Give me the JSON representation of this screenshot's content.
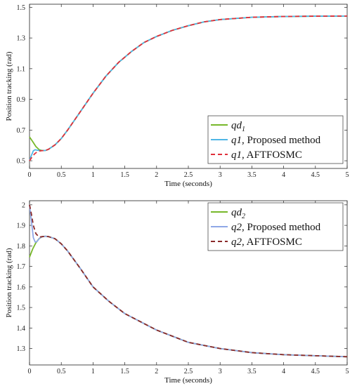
{
  "chart_data": [
    {
      "type": "line",
      "xlabel": "Time (seconds)",
      "ylabel": "Position tracking (rad)",
      "xlim": [
        0,
        5
      ],
      "ylim": [
        0.45,
        1.52
      ],
      "xticks": [
        "0",
        "0.5",
        "1",
        "1.5",
        "2",
        "2.5",
        "3",
        "3.5",
        "4",
        "4.5",
        "5"
      ],
      "yticks": [
        "0.5",
        "0.7",
        "0.9",
        "1.1",
        "1.3",
        "1.5"
      ],
      "ytick_values": [
        0.5,
        0.7,
        0.9,
        1.1,
        1.3,
        1.5
      ],
      "legend_position": "bottom-right",
      "series": [
        {
          "name": "qd",
          "subscript": "1",
          "suffix": "",
          "color": "#77b82a",
          "dash": "solid",
          "x": [
            0,
            0.05,
            0.1,
            0.15,
            0.2,
            0.25,
            0.3,
            0.4,
            0.5,
            0.6,
            0.7,
            0.8,
            0.9,
            1.0,
            1.2,
            1.4,
            1.6,
            1.8,
            2.0,
            2.25,
            2.5,
            2.75,
            3.0,
            3.5,
            4.0,
            4.5,
            5.0
          ],
          "y": [
            0.655,
            0.625,
            0.593,
            0.573,
            0.566,
            0.567,
            0.575,
            0.603,
            0.645,
            0.7,
            0.76,
            0.82,
            0.88,
            0.94,
            1.05,
            1.14,
            1.21,
            1.27,
            1.31,
            1.35,
            1.38,
            1.405,
            1.42,
            1.435,
            1.44,
            1.442,
            1.443
          ]
        },
        {
          "name": "q1, Proposed method",
          "subscript": "",
          "suffix": "",
          "color": "#4fb6e6",
          "dash": "solid",
          "x": [
            0,
            0.03,
            0.06,
            0.09,
            0.12,
            0.16,
            0.2,
            0.25,
            0.3,
            0.4,
            0.5,
            0.6,
            0.7,
            0.8,
            0.9,
            1.0,
            1.2,
            1.4,
            1.6,
            1.8,
            2.0,
            2.25,
            2.5,
            2.75,
            3.0,
            3.5,
            4.0,
            4.5,
            5.0
          ],
          "y": [
            0.5,
            0.535,
            0.565,
            0.572,
            0.569,
            0.566,
            0.566,
            0.567,
            0.575,
            0.603,
            0.645,
            0.7,
            0.76,
            0.82,
            0.88,
            0.94,
            1.05,
            1.14,
            1.21,
            1.27,
            1.31,
            1.35,
            1.38,
            1.405,
            1.42,
            1.435,
            1.44,
            1.442,
            1.443
          ]
        },
        {
          "name": "q1, AFTFOSMC",
          "subscript": "",
          "suffix": "",
          "color": "#e0303a",
          "dash": "dashed",
          "x": [
            0,
            0.04,
            0.08,
            0.12,
            0.16,
            0.2,
            0.25,
            0.3,
            0.4,
            0.5,
            0.6,
            0.7,
            0.8,
            0.9,
            1.0,
            1.2,
            1.4,
            1.6,
            1.8,
            2.0,
            2.25,
            2.5,
            2.75,
            3.0,
            3.5,
            4.0,
            4.5,
            5.0
          ],
          "y": [
            0.5,
            0.525,
            0.545,
            0.558,
            0.564,
            0.566,
            0.567,
            0.575,
            0.603,
            0.645,
            0.7,
            0.76,
            0.82,
            0.88,
            0.94,
            1.05,
            1.14,
            1.21,
            1.27,
            1.31,
            1.35,
            1.38,
            1.405,
            1.42,
            1.435,
            1.44,
            1.442,
            1.443
          ]
        }
      ]
    },
    {
      "type": "line",
      "xlabel": "Time (seconds)",
      "ylabel": "Position tracking (rad)",
      "xlim": [
        0,
        5
      ],
      "ylim": [
        1.22,
        2.02
      ],
      "xticks": [
        "0",
        "0.5",
        "1",
        "1.5",
        "2",
        "2.5",
        "3",
        "3.5",
        "4",
        "4.5",
        "5"
      ],
      "yticks": [
        "1.3",
        "1.4",
        "1.5",
        "1.6",
        "1.7",
        "1.8",
        "1.9",
        "2"
      ],
      "ytick_values": [
        1.3,
        1.4,
        1.5,
        1.6,
        1.7,
        1.8,
        1.9,
        2.0
      ],
      "legend_position": "top-right",
      "series": [
        {
          "name": "qd",
          "subscript": "2",
          "suffix": "",
          "color": "#77b82a",
          "dash": "solid",
          "x": [
            0,
            0.05,
            0.1,
            0.15,
            0.2,
            0.25,
            0.3,
            0.4,
            0.5,
            0.6,
            0.8,
            1.0,
            1.25,
            1.5,
            1.75,
            2.0,
            2.5,
            3.0,
            3.5,
            4.0,
            4.5,
            5.0
          ],
          "y": [
            1.745,
            1.785,
            1.815,
            1.835,
            1.845,
            1.847,
            1.845,
            1.835,
            1.81,
            1.775,
            1.69,
            1.6,
            1.53,
            1.47,
            1.43,
            1.39,
            1.33,
            1.3,
            1.28,
            1.27,
            1.265,
            1.26
          ]
        },
        {
          "name": "q2, Proposed method",
          "subscript": "",
          "suffix": "",
          "color": "#8fa7e6",
          "dash": "solid",
          "x": [
            0,
            0.03,
            0.06,
            0.09,
            0.12,
            0.16,
            0.2,
            0.25,
            0.3,
            0.4,
            0.5,
            0.6,
            0.8,
            1.0,
            1.25,
            1.5,
            1.75,
            2.0,
            2.5,
            3.0,
            3.5,
            4.0,
            4.5,
            5.0
          ],
          "y": [
            2.0,
            1.92,
            1.84,
            1.818,
            1.822,
            1.838,
            1.845,
            1.847,
            1.845,
            1.835,
            1.81,
            1.775,
            1.69,
            1.6,
            1.53,
            1.47,
            1.43,
            1.39,
            1.33,
            1.3,
            1.28,
            1.27,
            1.265,
            1.26
          ]
        },
        {
          "name": "q2, AFTFOSMC",
          "subscript": "",
          "suffix": "",
          "color": "#8a2a2a",
          "dash": "dashed",
          "x": [
            0,
            0.03,
            0.06,
            0.1,
            0.15,
            0.2,
            0.25,
            0.3,
            0.4,
            0.5,
            0.6,
            0.8,
            1.0,
            1.25,
            1.5,
            1.75,
            2.0,
            2.5,
            3.0,
            3.5,
            4.0,
            4.5,
            5.0
          ],
          "y": [
            2.0,
            1.955,
            1.9,
            1.86,
            1.843,
            1.845,
            1.847,
            1.845,
            1.835,
            1.81,
            1.775,
            1.69,
            1.6,
            1.53,
            1.47,
            1.43,
            1.39,
            1.33,
            1.3,
            1.28,
            1.27,
            1.265,
            1.26
          ]
        }
      ]
    }
  ]
}
